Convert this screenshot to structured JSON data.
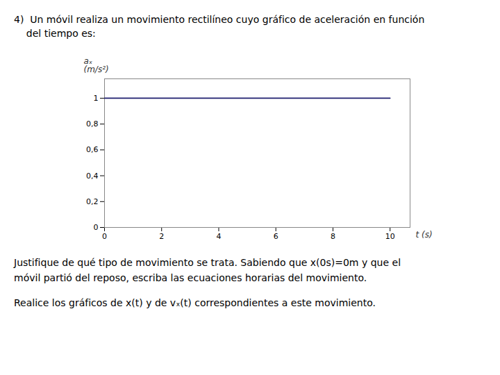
{
  "chart_data": {
    "type": "line",
    "title": "4)  Un móvil realiza un movimiento rectilíneo cuyo gráfico de aceleración en función\n    del tiempo es:",
    "xlabel": "t (s)",
    "ylabel": "aₓ\n(m/s²)",
    "x": [
      0,
      10
    ],
    "values": [
      1.0,
      1.0
    ],
    "color": "#1c1c6e",
    "xlim": [
      0,
      10.7
    ],
    "ylim": [
      0,
      1.15
    ],
    "xticks": [
      0,
      2,
      4,
      6,
      8,
      10
    ],
    "yticks": [
      0,
      {
        "value": 0.2,
        "label": "0,2"
      },
      {
        "value": 0.4,
        "label": "0,4"
      },
      {
        "value": 0.6,
        "label": "0,6"
      },
      {
        "value": 0.8,
        "label": "0,8"
      },
      1
    ],
    "grid": false,
    "annotations": [
      "Justifique de qué tipo de movimiento se trata. Sabiendo que x(0s)=0m y que el",
      "móvil partió del reposo, escriba las ecuaciones horarias del movimiento.",
      "Realice los gráficos de x(t) y de vₓ(t) correspondientes a este movimiento."
    ]
  }
}
